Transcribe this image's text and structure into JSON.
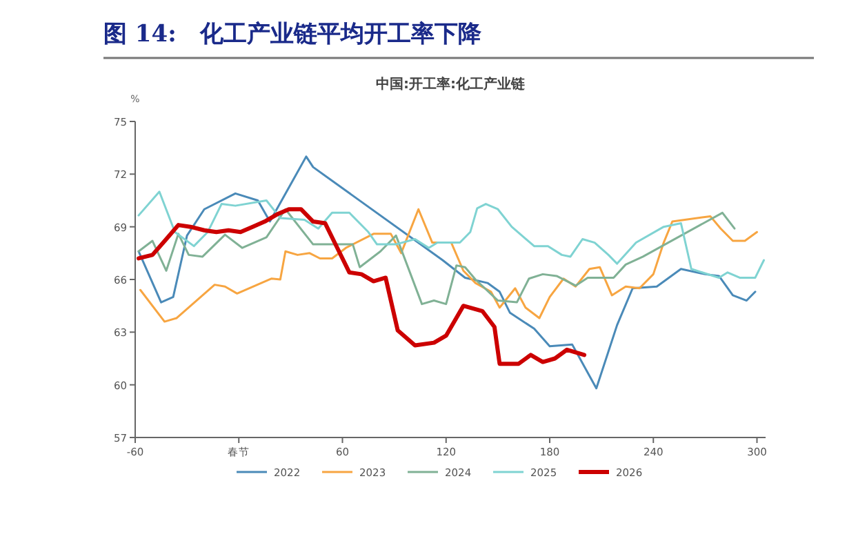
{
  "chart_data": {
    "type": "line",
    "title": "图 14:　化工产业链平均开工率下降",
    "subtitle": "中国:开工率:化工产业链",
    "ylabel": "%",
    "xlim": [
      -60,
      305
    ],
    "xticks": [
      -60,
      {
        "value": 0,
        "label": "春节"
      },
      60,
      120,
      180,
      240,
      300
    ],
    "ylim": [
      57,
      75
    ],
    "yticks": [
      57,
      60,
      63,
      66,
      69,
      72,
      75
    ],
    "grid": false,
    "legend": "bottom",
    "line_style": "solid",
    "marker": "none",
    "series": [
      {
        "name": "2022",
        "color": "#4a8ab8",
        "x": [
          -58,
          -45,
          -38,
          -30,
          -20,
          -2,
          11,
          18,
          39,
          43,
          118,
          131,
          144,
          151,
          157,
          171,
          180,
          193,
          207,
          219,
          228,
          242,
          256,
          270,
          278,
          286,
          294,
          299
        ],
        "values": [
          67.6,
          64.7,
          65.0,
          68.5,
          70.0,
          70.9,
          70.5,
          69.3,
          73.0,
          72.4,
          67.1,
          66.1,
          65.8,
          65.3,
          64.1,
          63.2,
          62.2,
          62.3,
          59.8,
          63.4,
          65.5,
          65.6,
          66.6,
          66.3,
          66.2,
          65.1,
          64.8,
          65.3
        ]
      },
      {
        "name": "2023",
        "color": "#f7a541",
        "x": [
          -57,
          -43,
          -36,
          -14,
          -8,
          -1,
          19,
          24,
          27,
          34,
          41,
          47,
          54,
          62,
          78,
          88,
          94,
          104,
          112,
          123,
          130,
          137,
          146,
          151,
          160,
          166,
          174,
          180,
          188,
          195,
          203,
          209,
          216,
          224,
          232,
          240,
          246,
          251,
          273,
          279,
          286,
          293,
          300
        ],
        "values": [
          65.4,
          63.6,
          63.8,
          65.7,
          65.6,
          65.2,
          66.05,
          66.0,
          67.6,
          67.4,
          67.5,
          67.2,
          67.2,
          67.8,
          68.6,
          68.6,
          67.5,
          70.0,
          68.1,
          68.1,
          66.5,
          65.8,
          65.3,
          64.4,
          65.5,
          64.4,
          63.8,
          65.0,
          66.05,
          65.6,
          66.6,
          66.7,
          65.1,
          65.6,
          65.5,
          66.3,
          68.1,
          69.3,
          69.6,
          68.9,
          68.2,
          68.2,
          68.7
        ]
      },
      {
        "name": "2024",
        "color": "#80b195",
        "x": [
          -58,
          -50,
          -42,
          -35,
          -29,
          -21,
          -8,
          2,
          16,
          27,
          43,
          60,
          66,
          70,
          82,
          91,
          106,
          113,
          120,
          126,
          131,
          137,
          150,
          161,
          168,
          176,
          184,
          195,
          202,
          217,
          224,
          234,
          245,
          280,
          287
        ],
        "values": [
          67.6,
          68.2,
          66.5,
          68.6,
          67.4,
          67.3,
          68.55,
          67.8,
          68.4,
          70.0,
          68.0,
          68.0,
          68.0,
          66.7,
          67.6,
          68.5,
          64.6,
          64.8,
          64.6,
          66.8,
          66.7,
          66.0,
          64.8,
          64.7,
          66.05,
          66.3,
          66.2,
          65.65,
          66.1,
          66.1,
          66.85,
          67.3,
          67.9,
          69.8,
          68.9
        ]
      },
      {
        "name": "2025",
        "color": "#7fd3d2",
        "x": [
          -58,
          -46,
          -37,
          -26,
          -18,
          -10,
          -2,
          16,
          24,
          38,
          46,
          54,
          64,
          75,
          80,
          91,
          102,
          110,
          115,
          123,
          128,
          134,
          138,
          143,
          150,
          158,
          171,
          179,
          187,
          192,
          199,
          206,
          214,
          219,
          230,
          246,
          256,
          262,
          278,
          283,
          290,
          299,
          304
        ],
        "values": [
          69.65,
          71.0,
          68.7,
          67.9,
          68.7,
          70.3,
          70.2,
          70.5,
          69.5,
          69.4,
          68.9,
          69.8,
          69.8,
          68.7,
          68.0,
          68.0,
          68.3,
          67.8,
          68.1,
          68.1,
          68.1,
          68.7,
          70.05,
          70.3,
          70.0,
          69.0,
          67.9,
          67.9,
          67.4,
          67.3,
          68.3,
          68.1,
          67.4,
          66.9,
          68.1,
          69.0,
          69.2,
          66.6,
          66.1,
          66.4,
          66.1,
          66.1,
          67.1
        ]
      },
      {
        "name": "2026",
        "color": "#cc0000",
        "x": [
          -58,
          -50,
          -42,
          -35,
          -28,
          -20,
          -13,
          -6,
          1,
          8,
          15,
          22,
          29,
          36,
          43,
          50,
          57,
          64,
          71,
          78,
          85,
          92,
          102,
          113,
          120,
          130,
          141,
          148,
          151,
          162,
          169,
          176,
          183,
          190,
          200
        ],
        "values": [
          67.2,
          67.4,
          68.3,
          69.1,
          69.0,
          68.8,
          68.7,
          68.8,
          68.7,
          69.0,
          69.3,
          69.7,
          70.0,
          70.0,
          69.3,
          69.2,
          67.8,
          66.4,
          66.3,
          65.9,
          66.1,
          63.1,
          62.25,
          62.4,
          62.8,
          64.5,
          64.2,
          63.3,
          61.2,
          61.2,
          61.7,
          61.3,
          61.5,
          62.0,
          61.7
        ]
      }
    ]
  }
}
